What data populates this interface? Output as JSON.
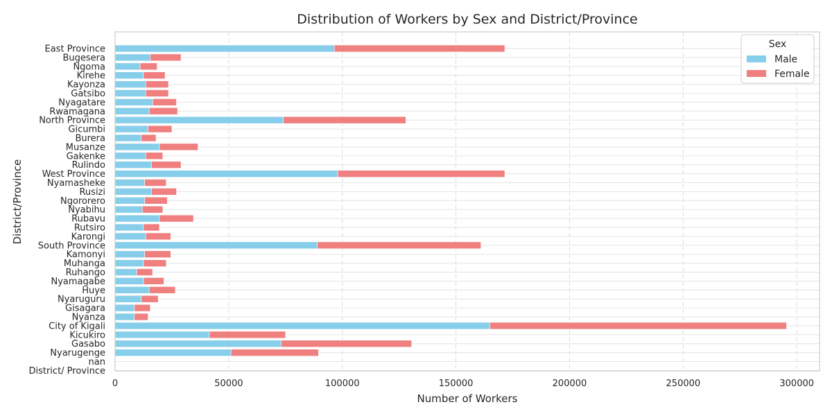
{
  "chart_data": {
    "type": "bar",
    "orientation": "horizontal",
    "stacked": true,
    "title": "Distribution of Workers by Sex and District/Province",
    "xlabel": "Number of Workers",
    "ylabel": "District/Province",
    "xlim": [
      0,
      310000
    ],
    "xticks": [
      0,
      50000,
      100000,
      150000,
      200000,
      250000,
      300000
    ],
    "grid": "vertical-dashed",
    "legend": {
      "title": "Sex",
      "placement": "top-right"
    },
    "categories": [
      "East Province",
      "Bugesera",
      "Ngoma",
      "Kirehe",
      "Kayonza",
      "Gatsibo",
      "Nyagatare",
      "Rwamagana",
      "North Province",
      "Gicumbi",
      "Burera",
      "Musanze",
      "Gakenke",
      "Rulindo",
      "West Province",
      "Nyamasheke",
      "Rusizi",
      "Ngororero",
      "Nyabihu",
      "Rubavu",
      "Rutsiro",
      "Karongi",
      "South Province",
      "Kamonyi",
      "Muhanga",
      "Ruhango",
      "Nyamagabe",
      "Huye",
      "Nyaruguru",
      "Gisagara",
      "Nyanza",
      "City of Kigali",
      "Kicukiro",
      "Gasabo",
      "Nyarugenge",
      "nan",
      "District/ Province"
    ],
    "series": [
      {
        "name": "Male",
        "color": "#87ceeb",
        "values": [
          96500,
          15500,
          11000,
          12500,
          13500,
          13500,
          16500,
          15000,
          74000,
          14500,
          11500,
          19500,
          13500,
          16000,
          98000,
          13000,
          16000,
          13000,
          12000,
          19500,
          12500,
          13500,
          89000,
          13000,
          12500,
          9500,
          12500,
          15000,
          11500,
          8500,
          8500,
          165000,
          41500,
          73000,
          51000,
          0,
          0
        ]
      },
      {
        "name": "Female",
        "color": "#f08080",
        "values": [
          75000,
          13500,
          7500,
          9500,
          10000,
          10000,
          10500,
          12500,
          54000,
          10500,
          6500,
          17000,
          7500,
          13000,
          73500,
          9500,
          11000,
          10000,
          9000,
          15000,
          7000,
          11000,
          72000,
          11500,
          10000,
          7000,
          9000,
          11500,
          7500,
          7000,
          6000,
          130500,
          33500,
          57500,
          38500,
          0,
          0
        ]
      }
    ]
  }
}
